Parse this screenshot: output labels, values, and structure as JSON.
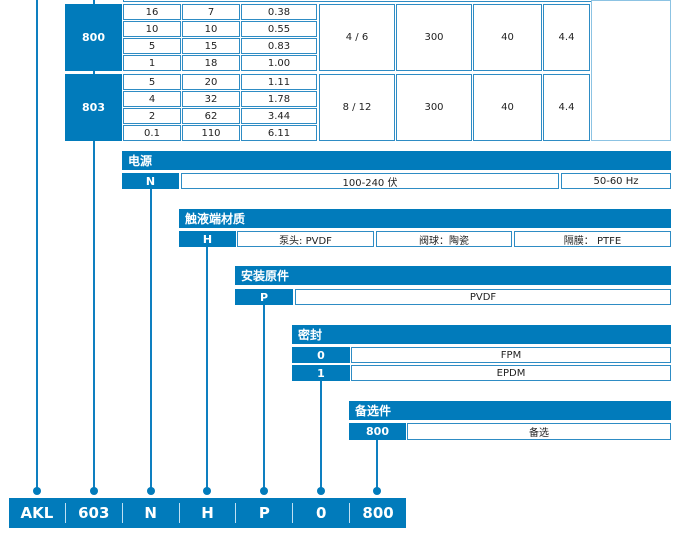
{
  "table": {
    "groups": [
      {
        "code": "800",
        "rows": [
          [
            "16",
            "7",
            "0.38"
          ],
          [
            "10",
            "10",
            "0.55"
          ],
          [
            "5",
            "15",
            "0.83"
          ],
          [
            "1",
            "18",
            "1.00"
          ]
        ],
        "merged": [
          "4 / 6",
          "300",
          "40",
          "4.4"
        ]
      },
      {
        "code": "803",
        "rows": [
          [
            "5",
            "20",
            "1.11"
          ],
          [
            "4",
            "32",
            "1.78"
          ],
          [
            "2",
            "62",
            "3.44"
          ],
          [
            "0.1",
            "110",
            "6.11"
          ]
        ],
        "merged": [
          "8 / 12",
          "300",
          "40",
          "4.4"
        ]
      }
    ]
  },
  "power": {
    "title": "电源",
    "code": "N",
    "voltage": "100-240 伏",
    "frequency": "50-60 Hz"
  },
  "wetted": {
    "title": "触液端材质",
    "code": "H",
    "head": "泵头: PVDF",
    "ball": "阀球：陶瓷",
    "diaphragm": "隔膜： PTFE"
  },
  "fitting": {
    "title": "安装原件",
    "code": "P",
    "value": "PVDF"
  },
  "seal": {
    "title": "密封",
    "options": [
      {
        "code": "0",
        "value": "FPM"
      },
      {
        "code": "1",
        "value": "EPDM"
      }
    ]
  },
  "option": {
    "title": "备选件",
    "code": "800",
    "value": "备选"
  },
  "model_code": [
    "AKL",
    "603",
    "N",
    "H",
    "P",
    "0",
    "800"
  ],
  "colors": {
    "brand": "#017bbb"
  }
}
